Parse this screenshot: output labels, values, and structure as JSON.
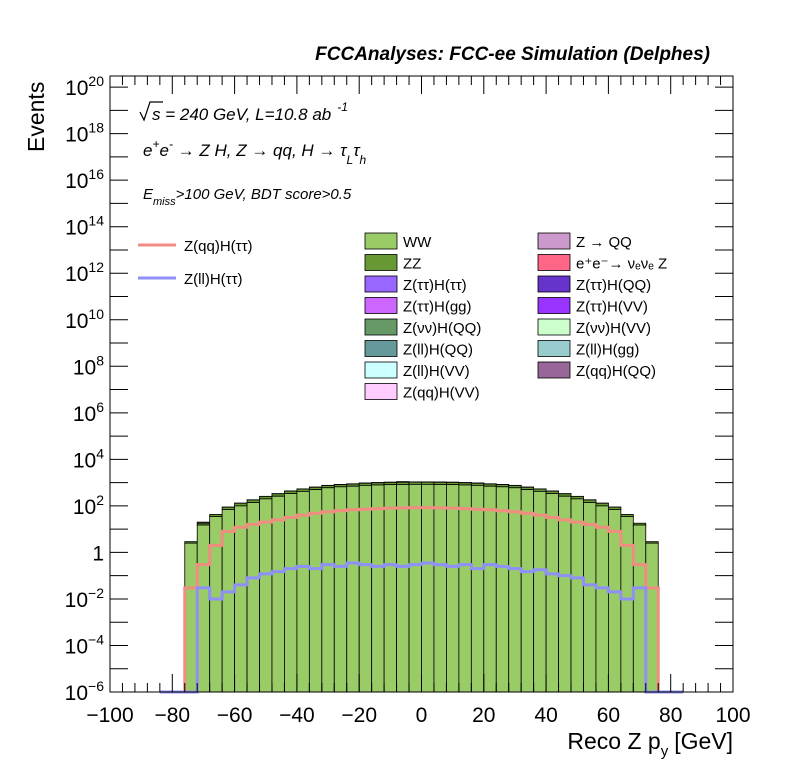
{
  "chart_data": {
    "type": "bar",
    "stacked": true,
    "title": "FCCAnalyses: FCC-ee Simulation (Delphes)",
    "xlabel": "Reco Z p",
    "xlabel_sub": "y",
    "xlabel_unit": "[GeV]",
    "ylabel": "Events",
    "log_y": true,
    "xlim": [
      -100,
      100
    ],
    "ylim": [
      1e-06,
      3e+20
    ],
    "x_ticks": [
      "−100",
      "−80",
      "−60",
      "−40",
      "−20",
      "0",
      "20",
      "40",
      "60",
      "80",
      "100"
    ],
    "y_ticks": [
      {
        "base": "10",
        "exp": "−6"
      },
      {
        "base": "10",
        "exp": "−4"
      },
      {
        "base": "10",
        "exp": "−2"
      },
      {
        "base": "1",
        "exp": ""
      },
      {
        "base": "10",
        "exp": "2"
      },
      {
        "base": "10",
        "exp": "4"
      },
      {
        "base": "10",
        "exp": "6"
      },
      {
        "base": "10",
        "exp": "8"
      },
      {
        "base": "10",
        "exp": "10"
      },
      {
        "base": "10",
        "exp": "12"
      },
      {
        "base": "10",
        "exp": "14"
      },
      {
        "base": "10",
        "exp": "16"
      },
      {
        "base": "10",
        "exp": "18"
      },
      {
        "base": "10",
        "exp": "20"
      }
    ],
    "annotations": {
      "line1_sqrt": "s",
      "line1_rest": " = 240 GeV, L=10.8 ab",
      "line1_sup": "-1",
      "line2_a": "e",
      "line2_a_sup": "+",
      "line2_b": "e",
      "line2_b_sup": "-",
      "line2_c": " → Z H, Z  → qq, H  →  τ",
      "line2_c_sub": "L",
      "line2_d": "τ",
      "line2_d_sub": "h",
      "line3_a": "E",
      "line3_a_sub": "miss",
      "line3_b": ">100 GeV, BDT score>0.5"
    },
    "bin_edges": [
      -84,
      -80,
      -76,
      -72,
      -68,
      -64,
      -60,
      -56,
      -52,
      -48,
      -44,
      -40,
      -36,
      -32,
      -28,
      -24,
      -20,
      -16,
      -12,
      -8,
      -4,
      0,
      4,
      8,
      12,
      16,
      20,
      24,
      28,
      32,
      36,
      40,
      44,
      48,
      52,
      56,
      60,
      64,
      68,
      72,
      76,
      80,
      84
    ],
    "stacks": {
      "WW": [
        0,
        0,
        2.5,
        15,
        35,
        70,
        100,
        140,
        200,
        260,
        340,
        420,
        500,
        600,
        660,
        700,
        760,
        790,
        820,
        830,
        840,
        840,
        830,
        820,
        790,
        760,
        700,
        660,
        600,
        500,
        420,
        340,
        260,
        200,
        140,
        100,
        70,
        35,
        15,
        2.5,
        0,
        0
      ],
      "ZZ": [
        0,
        0,
        0.4,
        3,
        8,
        18,
        30,
        40,
        55,
        70,
        90,
        110,
        130,
        150,
        160,
        170,
        180,
        190,
        200,
        205,
        210,
        210,
        205,
        200,
        190,
        180,
        170,
        160,
        150,
        130,
        110,
        90,
        70,
        55,
        40,
        30,
        18,
        8,
        3,
        0.4,
        0,
        0
      ],
      "Z(qq)H(VV)": [
        0,
        0,
        0,
        0,
        0,
        0,
        0.2,
        0.5,
        1,
        2,
        3,
        4,
        6,
        8,
        10,
        12,
        14,
        15,
        16,
        17,
        17,
        17,
        17,
        16,
        15,
        14,
        12,
        10,
        8,
        6,
        4,
        3,
        2,
        1,
        0.5,
        0.2,
        0,
        0,
        0,
        0,
        0,
        0
      ],
      "Z(ττ)H(ττ)": [
        0,
        0,
        0,
        0,
        0.2,
        0.4,
        0.6,
        0.9,
        1.3,
        1.8,
        2.4,
        3,
        4,
        5,
        6,
        6.5,
        7,
        7.5,
        8,
        8,
        8,
        8,
        8,
        8,
        7.5,
        7,
        6.5,
        6,
        5,
        4,
        3,
        2.4,
        1.8,
        1.3,
        0.9,
        0.6,
        0.4,
        0.2,
        0,
        0,
        0,
        0
      ],
      "Z(ll)H(VV)": [
        0,
        0,
        0,
        0.01,
        0.02,
        0.03,
        0.05,
        0.08,
        0.1,
        0.14,
        0.2,
        0.25,
        0.3,
        0.35,
        0.4,
        0.45,
        0.5,
        0.5,
        0.55,
        0.55,
        0.55,
        0.55,
        0.55,
        0.55,
        0.5,
        0.5,
        0.45,
        0.4,
        0.35,
        0.3,
        0.25,
        0.2,
        0.14,
        0.1,
        0.08,
        0.05,
        0.03,
        0.02,
        0.01,
        0,
        0,
        0
      ],
      "Z(ll)H(gg)": [
        0,
        0,
        0,
        0.002,
        0.005,
        0.008,
        0.01,
        0.012,
        0.015,
        0.02,
        0.025,
        0.03,
        0.03,
        0.035,
        0.035,
        0.04,
        0.04,
        0.04,
        0.04,
        0.04,
        0.04,
        0.04,
        0.04,
        0.04,
        0.04,
        0.04,
        0.04,
        0.035,
        0.035,
        0.03,
        0.03,
        0.025,
        0.02,
        0.015,
        0.012,
        0.01,
        0.008,
        0.005,
        0.002,
        0,
        0,
        0
      ],
      "Z(ττ)H(gg)": [
        0,
        0,
        0,
        0,
        0,
        0.5,
        0.8,
        1,
        1.2,
        1.5,
        1.8,
        2,
        2.2,
        2.5,
        2.6,
        2.8,
        3,
        3,
        3.1,
        3.2,
        3.2,
        3.2,
        3.2,
        3.1,
        3,
        3,
        2.8,
        2.6,
        2.5,
        2.2,
        2,
        1.8,
        1.5,
        1.2,
        1,
        0.8,
        0.5,
        0,
        0,
        0,
        0,
        0
      ],
      "Z(νν)H(QQ)": [
        0,
        0,
        0,
        0,
        0,
        0,
        0,
        0,
        0,
        0,
        0,
        2,
        0,
        0,
        0,
        0,
        0,
        0,
        0,
        0,
        5,
        0,
        0,
        0,
        0,
        0,
        3,
        0,
        0,
        0,
        0,
        0,
        0,
        0,
        0,
        0,
        0,
        0,
        0,
        0,
        0,
        0
      ],
      "Z → QQ": [
        0,
        0,
        0,
        2,
        0,
        0,
        0,
        0,
        0,
        0,
        0,
        0,
        0,
        0,
        0,
        0,
        0,
        0,
        0,
        40,
        0,
        0,
        0,
        0,
        0,
        0,
        0,
        0,
        0,
        0,
        0,
        0,
        0,
        0,
        0,
        0,
        0,
        0,
        0,
        0,
        0,
        0
      ],
      "e⁺e⁻→ νₑνₑ Z": [
        0,
        0,
        0,
        0,
        0,
        0,
        0,
        0,
        0,
        0,
        0,
        0,
        0,
        0,
        0,
        0,
        0,
        0,
        0,
        0,
        0,
        0.3,
        0,
        0,
        0,
        0,
        0,
        0.3,
        0,
        0,
        0,
        0,
        0,
        0,
        0,
        0,
        0,
        0,
        0,
        0,
        0,
        0
      ],
      "Z(qq)H(QQ)": [
        0,
        0,
        0,
        0,
        0,
        0,
        0,
        0,
        0,
        0,
        0,
        0,
        0,
        0,
        0,
        0,
        0,
        0.0003,
        0,
        0,
        0,
        0,
        0,
        0,
        0,
        0,
        0,
        0,
        0,
        0,
        0,
        0,
        0,
        0,
        0,
        0,
        0,
        0,
        0,
        0,
        0,
        0
      ]
    },
    "series": [
      {
        "name": "Z(qq)H(ττ)",
        "type": "line",
        "color": "#f08c80",
        "values": [
          0,
          0,
          0.03,
          0.3,
          2,
          8,
          12,
          16,
          20,
          25,
          32,
          40,
          48,
          56,
          62,
          68,
          72,
          76,
          80,
          82,
          84,
          84,
          82,
          80,
          76,
          72,
          68,
          62,
          56,
          48,
          40,
          32,
          25,
          20,
          16,
          12,
          8,
          2,
          0.3,
          0.03,
          0,
          0
        ]
      },
      {
        "name": "Z(ll)H(ττ)",
        "type": "line",
        "color": "#8f8ff8",
        "values": [
          0,
          0,
          0,
          0.03,
          0.01,
          0.02,
          0.04,
          0.08,
          0.12,
          0.15,
          0.2,
          0.25,
          0.2,
          0.3,
          0.25,
          0.35,
          0.3,
          0.25,
          0.3,
          0.25,
          0.3,
          0.35,
          0.3,
          0.25,
          0.3,
          0.2,
          0.3,
          0.25,
          0.2,
          0.15,
          0.18,
          0.12,
          0.1,
          0.08,
          0.04,
          0.03,
          0.02,
          0.01,
          0.03,
          0,
          0,
          0
        ]
      }
    ],
    "legend": {
      "placement": "top-right",
      "lines": [
        {
          "name": "Z(qq)H(ττ)",
          "color": "#f08c80"
        },
        {
          "name": "Z(ll)H(ττ)",
          "color": "#8f8ff8"
        }
      ],
      "fills": [
        {
          "name": "WW",
          "color": "#99cc66"
        },
        {
          "name": "Z → QQ",
          "color": "#cc99cc"
        },
        {
          "name": "ZZ",
          "color": "#669933"
        },
        {
          "name": "e⁺e⁻→ νₑνₑ Z",
          "color": "#ff6688"
        },
        {
          "name": "Z(ττ)H(ττ)",
          "color": "#9966ff"
        },
        {
          "name": "Z(ττ)H(QQ)",
          "color": "#6633cc"
        },
        {
          "name": "Z(ττ)H(gg)",
          "color": "#cc66ff"
        },
        {
          "name": "Z(ττ)H(VV)",
          "color": "#9933ff"
        },
        {
          "name": "Z(νν)H(QQ)",
          "color": "#669966"
        },
        {
          "name": "Z(νν)H(VV)",
          "color": "#ccffcc"
        },
        {
          "name": "Z(ll)H(QQ)",
          "color": "#669999"
        },
        {
          "name": "Z(ll)H(gg)",
          "color": "#99cccc"
        },
        {
          "name": "Z(ll)H(VV)",
          "color": "#ccffff"
        },
        {
          "name": "Z(qq)H(QQ)",
          "color": "#996699"
        },
        {
          "name": "Z(qq)H(VV)",
          "color": "#ffccff"
        }
      ]
    },
    "grid": false
  }
}
